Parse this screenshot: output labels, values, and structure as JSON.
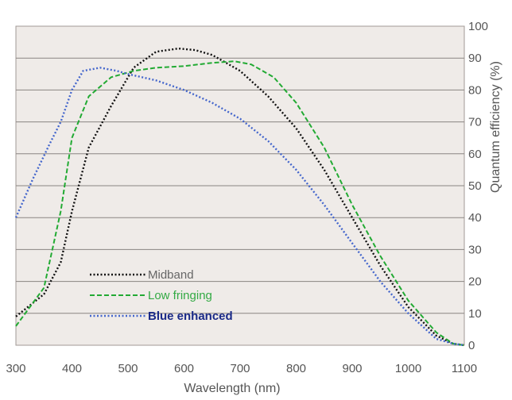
{
  "chart_data": {
    "type": "line",
    "title": "",
    "xlabel": "Wavelength (nm)",
    "ylabel": "Quantum efficiency (%)",
    "xlim": [
      300,
      1100
    ],
    "ylim": [
      0,
      100
    ],
    "x_ticks": [
      "300",
      "400",
      "500",
      "600",
      "700",
      "800",
      "900",
      "1000",
      "1100"
    ],
    "y_ticks": [
      "0",
      "10",
      "20",
      "30",
      "40",
      "50",
      "60",
      "70",
      "80",
      "90",
      "100"
    ],
    "grid": "horizontal",
    "legend_position": "bottom-left",
    "plot_background": "#efebe8",
    "series": [
      {
        "name": "Midband",
        "color": "#111111",
        "legend_text_color": "#666666",
        "dash": "dotted",
        "x": [
          300,
          350,
          380,
          400,
          430,
          470,
          510,
          550,
          590,
          620,
          650,
          680,
          700,
          750,
          800,
          850,
          900,
          950,
          1000,
          1050,
          1080,
          1100
        ],
        "y": [
          9,
          16,
          26,
          42,
          62,
          75,
          87,
          92,
          93,
          92.5,
          91,
          88,
          86,
          78,
          68,
          55,
          40,
          25,
          12,
          3,
          0.5,
          0
        ]
      },
      {
        "name": "Low fringing",
        "color": "#22aa33",
        "legend_text_color": "#33aa44",
        "dash": "dashed",
        "x": [
          300,
          350,
          380,
          400,
          430,
          470,
          510,
          550,
          600,
          650,
          690,
          720,
          760,
          800,
          850,
          900,
          950,
          1000,
          1050,
          1080,
          1100
        ],
        "y": [
          6,
          18,
          42,
          65,
          78,
          84,
          86,
          87,
          87.5,
          88.5,
          89,
          88,
          84,
          76,
          62,
          44,
          28,
          14,
          4,
          0.5,
          0
        ]
      },
      {
        "name": "Blue enhanced",
        "color": "#4466cc",
        "legend_text_color": "#1a2a88",
        "dash": "dotted",
        "x": [
          300,
          330,
          360,
          380,
          400,
          420,
          450,
          480,
          500,
          550,
          600,
          650,
          700,
          750,
          800,
          850,
          900,
          950,
          1000,
          1050,
          1080,
          1100
        ],
        "y": [
          40,
          52,
          63,
          70,
          80,
          86,
          87,
          86,
          85,
          83,
          80,
          76,
          71,
          64,
          55,
          44,
          32,
          20,
          10,
          2,
          0.5,
          0
        ]
      }
    ]
  }
}
